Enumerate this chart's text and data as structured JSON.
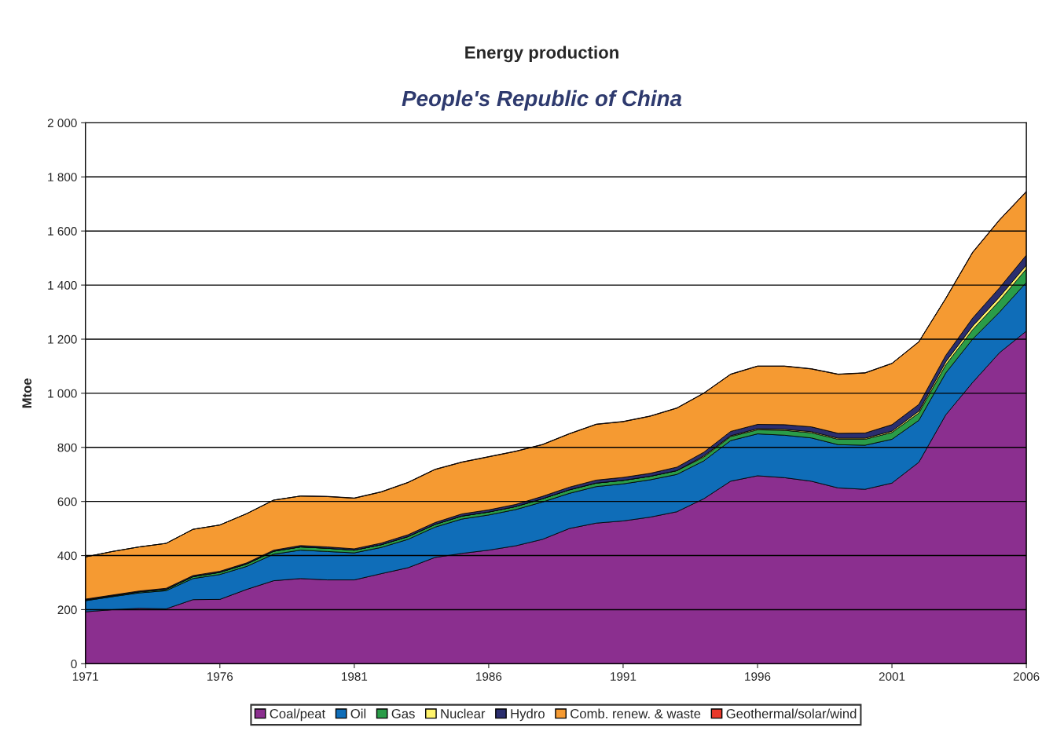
{
  "chart_data": {
    "type": "area",
    "stacked": true,
    "title": "Energy production",
    "subtitle": "People's Republic of China",
    "ylabel": "Mtoe",
    "x": [
      1971,
      1972,
      1973,
      1974,
      1975,
      1976,
      1977,
      1978,
      1979,
      1980,
      1981,
      1982,
      1983,
      1984,
      1985,
      1986,
      1987,
      1988,
      1989,
      1990,
      1991,
      1992,
      1993,
      1994,
      1995,
      1996,
      1997,
      1998,
      1999,
      2000,
      2001,
      2002,
      2003,
      2004,
      2005,
      2006
    ],
    "xlim": [
      1971,
      2006
    ],
    "xticks": [
      1971,
      1976,
      1981,
      1986,
      1991,
      1996,
      2001,
      2006
    ],
    "ylim": [
      0,
      2000
    ],
    "yticks": [
      0,
      200,
      400,
      600,
      800,
      {
        "value": 1000,
        "label": "1 000"
      },
      {
        "value": 1200,
        "label": "1 200"
      },
      {
        "value": 1400,
        "label": "1 400"
      },
      {
        "value": 1600,
        "label": "1 600"
      },
      {
        "value": 1800,
        "label": "1 800"
      },
      {
        "value": 2000,
        "label": "2 000"
      }
    ],
    "grid": "y",
    "legend": "bottom",
    "series": [
      {
        "name": "Coal/peat",
        "color": "#8b2f8f",
        "values": [
          192,
          200,
          205,
          203,
          237,
          238,
          275,
          307,
          315,
          310,
          310,
          333,
          355,
          393,
          408,
          420,
          436,
          460,
          500,
          520,
          528,
          542,
          562,
          610,
          675,
          695,
          688,
          675,
          650,
          645,
          668,
          745,
          920,
          1040,
          1150,
          1230
        ]
      },
      {
        "name": "Oil",
        "color": "#0f6db8",
        "values": [
          41,
          48,
          57,
          67,
          78,
          92,
          85,
          98,
          105,
          105,
          100,
          97,
          105,
          112,
          127,
          130,
          134,
          138,
          130,
          135,
          137,
          138,
          138,
          140,
          150,
          155,
          157,
          160,
          160,
          163,
          162,
          155,
          155,
          160,
          150,
          180
        ]
      },
      {
        "name": "Gas",
        "color": "#2a9c48",
        "values": [
          3,
          3,
          4,
          5,
          7,
          8,
          9,
          11,
          12,
          12,
          10,
          10,
          10,
          10,
          11,
          11,
          11,
          12,
          13,
          13,
          13,
          13,
          14,
          14,
          15,
          15,
          18,
          19,
          20,
          22,
          25,
          27,
          30,
          35,
          42,
          50
        ]
      },
      {
        "name": "Nuclear",
        "color": "#fff36b",
        "values": [
          0,
          0,
          0,
          0,
          0,
          0,
          0,
          0,
          0,
          0,
          0,
          0,
          0,
          0,
          0,
          0,
          0,
          0,
          0,
          0,
          0,
          0,
          0,
          4,
          3,
          4,
          4,
          4,
          4,
          4,
          5,
          7,
          11,
          13,
          14,
          14
        ]
      },
      {
        "name": "Hydro",
        "color": "#2b2e6e",
        "values": [
          3,
          3,
          3,
          4,
          4,
          4,
          4,
          4,
          5,
          5,
          5,
          6,
          7,
          7,
          8,
          8,
          8,
          9,
          10,
          11,
          11,
          11,
          13,
          14,
          16,
          16,
          17,
          18,
          18,
          19,
          24,
          25,
          24,
          30,
          34,
          37
        ]
      },
      {
        "name": "Comb. renew. & waste",
        "color": "#f59a32",
        "values": [
          156,
          161,
          163,
          166,
          171,
          171,
          182,
          185,
          183,
          186,
          187,
          189,
          193,
          196,
          191,
          196,
          196,
          191,
          197,
          206,
          206,
          211,
          218,
          218,
          211,
          215,
          216,
          214,
          218,
          222,
          226,
          231,
          210,
          242,
          250,
          234
        ]
      },
      {
        "name": "Geothermal/solar/wind",
        "color": "#e8392b",
        "values": [
          0,
          0,
          0,
          0,
          0,
          0,
          0,
          0,
          0,
          1,
          1,
          1,
          1,
          1,
          1,
          1,
          1,
          1,
          1,
          1,
          1,
          1,
          1,
          1,
          1,
          1,
          1,
          1,
          1,
          1,
          1,
          1,
          1,
          2,
          2,
          2
        ]
      }
    ]
  }
}
